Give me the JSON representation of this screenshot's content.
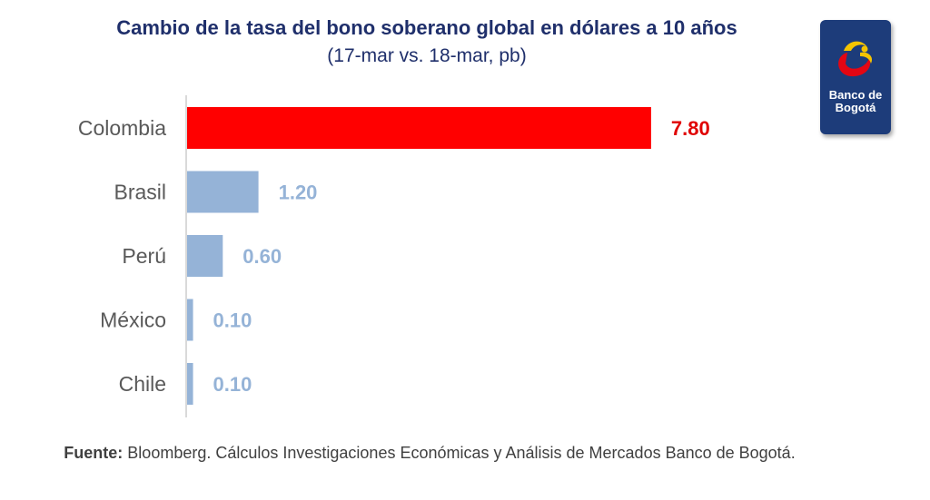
{
  "chart_data": {
    "type": "bar",
    "orientation": "horizontal",
    "title": "Cambio de la tasa del bono soberano global en dólares a 10 años",
    "subtitle": "(17-mar vs. 18-mar, pb)",
    "categories": [
      "Colombia",
      "Brasil",
      "Perú",
      "México",
      "Chile"
    ],
    "values": [
      7.8,
      1.2,
      0.6,
      0.1,
      0.1
    ],
    "value_labels": [
      "7.80",
      "1.20",
      "0.60",
      "0.10",
      "0.10"
    ],
    "highlight_category": "Colombia",
    "xlim": [
      0,
      8.0
    ],
    "grid": false,
    "legend": "none",
    "colors": {
      "highlight": "#ff0000",
      "highlight_label": "#e00000",
      "default": "#95b3d7",
      "default_label": "#95b3d7",
      "category_label": "#595959",
      "axis": "#d9d9d9"
    }
  },
  "logo": {
    "line1": "Banco de",
    "line2": "Bogotá",
    "background": "#1d3c7a"
  },
  "source": {
    "label": "Fuente:",
    "text": " Bloomberg. Cálculos Investigaciones Económicas y Análisis de Mercados Banco de Bogotá."
  }
}
